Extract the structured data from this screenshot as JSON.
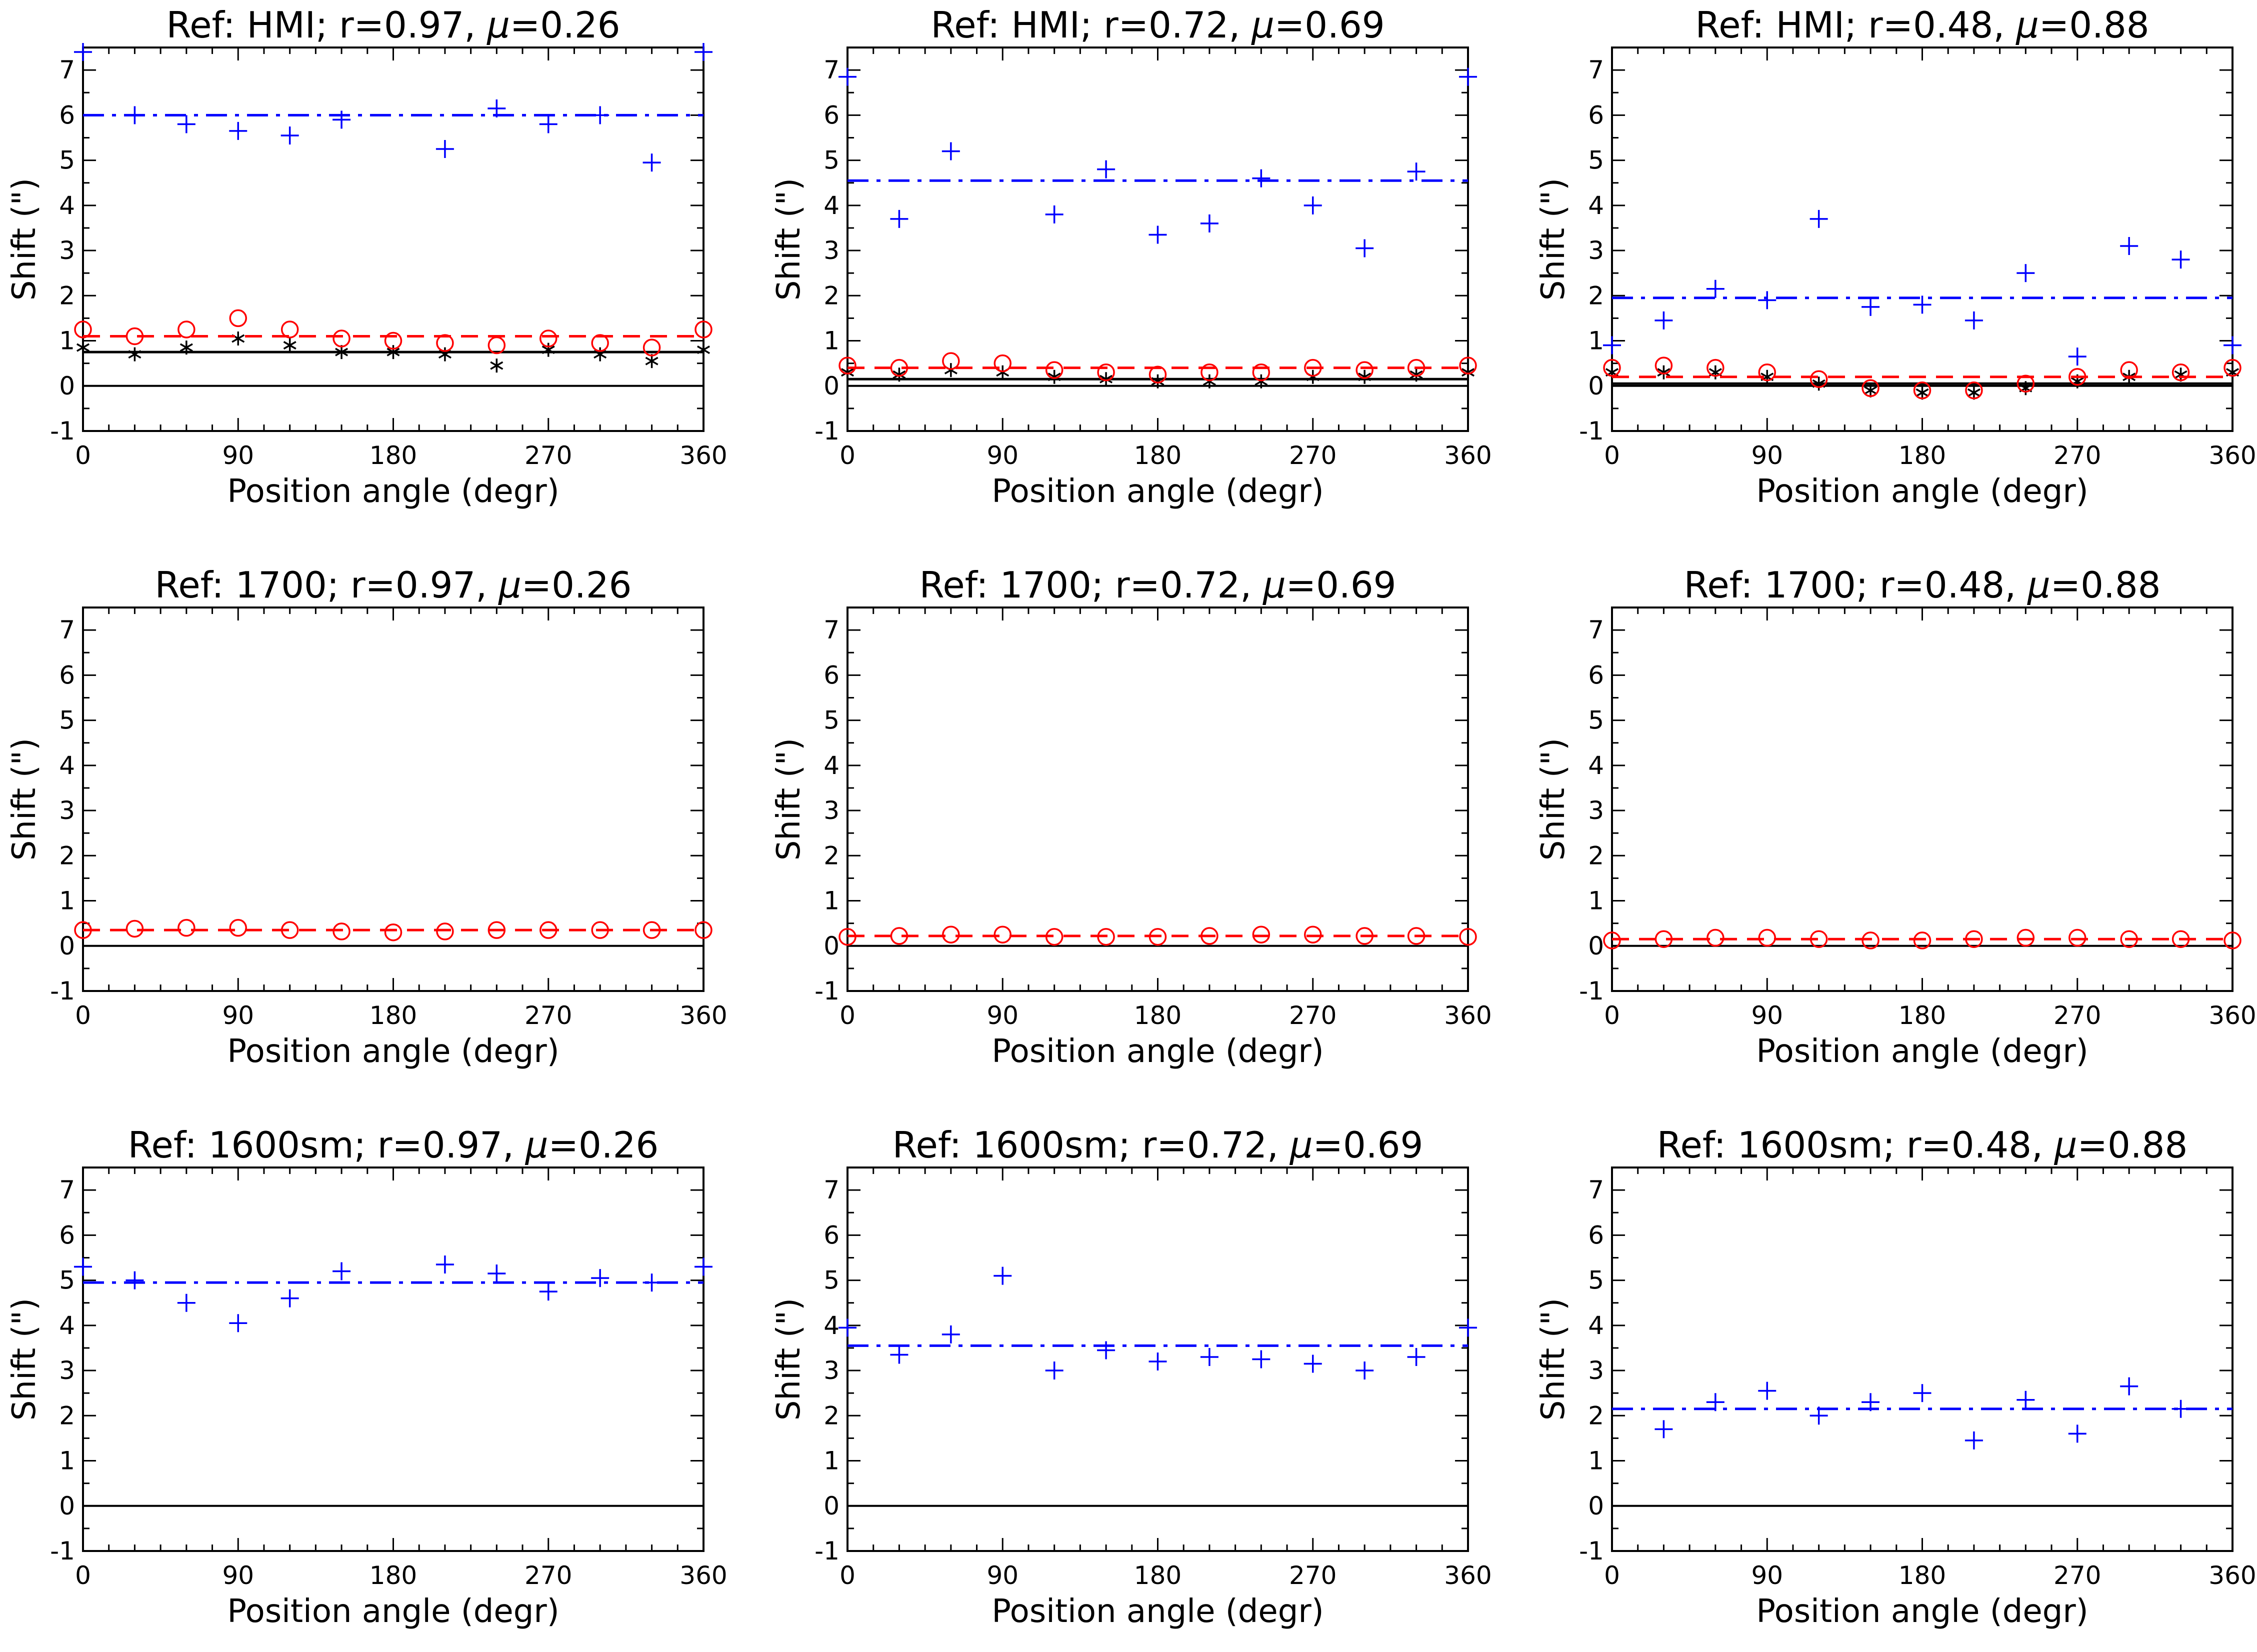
{
  "colors": {
    "axis": "#000000",
    "black_series": "#000000",
    "red_series": "#ff0000",
    "blue_series": "#0000ff"
  },
  "chart_data": [
    {
      "type": "scatter",
      "row": 0,
      "col": 0,
      "title_prefix": "Ref:  HMI;  r=0.97,  ",
      "title_mu": "μ",
      "title_suffix": "=0.26",
      "xlabel": "Position angle (degr)",
      "ylabel": "Shift (\")",
      "xlim": [
        0,
        360
      ],
      "ylim": [
        -1,
        7.5
      ],
      "xticks": [
        "0",
        "90",
        "180",
        "270",
        "360"
      ],
      "yticks": [
        "-1",
        "0",
        "1",
        "2",
        "3",
        "4",
        "5",
        "6",
        "7"
      ],
      "x": [
        0,
        30,
        60,
        90,
        120,
        150,
        180,
        210,
        240,
        270,
        300,
        330,
        360
      ],
      "series": [
        {
          "name": "black",
          "marker": "asterisk",
          "values": [
            0.85,
            0.7,
            0.85,
            1.05,
            0.9,
            0.75,
            0.75,
            0.7,
            0.45,
            0.8,
            0.7,
            0.55,
            0.8
          ],
          "mean": 0.75
        },
        {
          "name": "red",
          "marker": "circle",
          "values": [
            1.25,
            1.1,
            1.25,
            1.5,
            1.25,
            1.05,
            1.0,
            0.95,
            0.9,
            1.05,
            0.95,
            0.85,
            1.25
          ],
          "mean": 1.1
        },
        {
          "name": "blue",
          "marker": "plus",
          "values": [
            7.4,
            6.0,
            5.8,
            5.65,
            5.55,
            5.9,
            null,
            5.25,
            6.15,
            5.8,
            6.0,
            4.95,
            7.4
          ],
          "mean": 6.0
        }
      ]
    },
    {
      "type": "scatter",
      "row": 0,
      "col": 1,
      "title_prefix": "Ref:  HMI;  r=0.72,  ",
      "title_mu": "μ",
      "title_suffix": "=0.69",
      "xlabel": "Position angle (degr)",
      "ylabel": "Shift (\")",
      "xlim": [
        0,
        360
      ],
      "ylim": [
        -1,
        7.5
      ],
      "xticks": [
        "0",
        "90",
        "180",
        "270",
        "360"
      ],
      "yticks": [
        "-1",
        "0",
        "1",
        "2",
        "3",
        "4",
        "5",
        "6",
        "7"
      ],
      "x": [
        0,
        30,
        60,
        90,
        120,
        150,
        180,
        210,
        240,
        270,
        300,
        330,
        360
      ],
      "series": [
        {
          "name": "black",
          "marker": "asterisk",
          "values": [
            0.3,
            0.25,
            0.35,
            0.3,
            0.2,
            0.15,
            0.1,
            0.1,
            0.1,
            0.2,
            0.2,
            0.25,
            0.3
          ],
          "mean": 0.15
        },
        {
          "name": "red",
          "marker": "circle",
          "values": [
            0.45,
            0.4,
            0.55,
            0.5,
            0.35,
            0.3,
            0.25,
            0.3,
            0.3,
            0.4,
            0.35,
            0.4,
            0.45
          ],
          "mean": 0.4
        },
        {
          "name": "blue",
          "marker": "plus",
          "values": [
            6.85,
            3.7,
            5.2,
            null,
            3.8,
            4.8,
            3.35,
            3.6,
            4.6,
            4.0,
            3.05,
            4.75,
            6.85
          ],
          "mean": 4.55
        }
      ]
    },
    {
      "type": "scatter",
      "row": 0,
      "col": 2,
      "title_prefix": "Ref:  HMI;  r=0.48,  ",
      "title_mu": "μ",
      "title_suffix": "=0.88",
      "xlabel": "Position angle (degr)",
      "ylabel": "Shift (\")",
      "xlim": [
        0,
        360
      ],
      "ylim": [
        -1,
        7.5
      ],
      "xticks": [
        "0",
        "90",
        "180",
        "270",
        "360"
      ],
      "yticks": [
        "-1",
        "0",
        "1",
        "2",
        "3",
        "4",
        "5",
        "6",
        "7"
      ],
      "x": [
        0,
        30,
        60,
        90,
        120,
        150,
        180,
        210,
        240,
        270,
        300,
        330,
        360
      ],
      "series": [
        {
          "name": "black",
          "marker": "asterisk",
          "values": [
            0.3,
            0.3,
            0.3,
            0.2,
            0.05,
            -0.1,
            -0.15,
            -0.15,
            -0.05,
            0.1,
            0.2,
            0.25,
            0.3
          ],
          "mean": 0.05
        },
        {
          "name": "red",
          "marker": "circle",
          "values": [
            0.4,
            0.45,
            0.4,
            0.3,
            0.15,
            -0.05,
            -0.1,
            -0.1,
            0.05,
            0.2,
            0.35,
            0.3,
            0.4
          ],
          "mean": 0.2
        },
        {
          "name": "blue",
          "marker": "plus",
          "values": [
            0.9,
            1.45,
            2.15,
            1.9,
            3.7,
            1.75,
            1.8,
            1.45,
            2.5,
            0.65,
            3.1,
            2.8,
            0.9
          ],
          "mean": 1.95
        }
      ]
    },
    {
      "type": "scatter",
      "row": 1,
      "col": 0,
      "title_prefix": "Ref:  1700;  r=0.97,  ",
      "title_mu": "μ",
      "title_suffix": "=0.26",
      "xlabel": "Position angle (degr)",
      "ylabel": "Shift (\")",
      "xlim": [
        0,
        360
      ],
      "ylim": [
        -1,
        7.5
      ],
      "xticks": [
        "0",
        "90",
        "180",
        "270",
        "360"
      ],
      "yticks": [
        "-1",
        "0",
        "1",
        "2",
        "3",
        "4",
        "5",
        "6",
        "7"
      ],
      "x": [
        0,
        30,
        60,
        90,
        120,
        150,
        180,
        210,
        240,
        270,
        300,
        330,
        360
      ],
      "series": [
        {
          "name": "red",
          "marker": "circle",
          "values": [
            0.35,
            0.38,
            0.4,
            0.4,
            0.35,
            0.32,
            0.3,
            0.32,
            0.35,
            0.35,
            0.35,
            0.35,
            0.35
          ],
          "mean": 0.35
        }
      ]
    },
    {
      "type": "scatter",
      "row": 1,
      "col": 1,
      "title_prefix": "Ref:  1700;  r=0.72,  ",
      "title_mu": "μ",
      "title_suffix": "=0.69",
      "xlabel": "Position angle (degr)",
      "ylabel": "Shift (\")",
      "xlim": [
        0,
        360
      ],
      "ylim": [
        -1,
        7.5
      ],
      "xticks": [
        "0",
        "90",
        "180",
        "270",
        "360"
      ],
      "yticks": [
        "-1",
        "0",
        "1",
        "2",
        "3",
        "4",
        "5",
        "6",
        "7"
      ],
      "x": [
        0,
        30,
        60,
        90,
        120,
        150,
        180,
        210,
        240,
        270,
        300,
        330,
        360
      ],
      "series": [
        {
          "name": "red",
          "marker": "circle",
          "values": [
            0.2,
            0.22,
            0.25,
            0.25,
            0.2,
            0.2,
            0.2,
            0.22,
            0.25,
            0.25,
            0.22,
            0.22,
            0.2
          ],
          "mean": 0.22
        }
      ]
    },
    {
      "type": "scatter",
      "row": 1,
      "col": 2,
      "title_prefix": "Ref:  1700;  r=0.48,  ",
      "title_mu": "μ",
      "title_suffix": "=0.88",
      "xlabel": "Position angle (degr)",
      "ylabel": "Shift (\")",
      "xlim": [
        0,
        360
      ],
      "ylim": [
        -1,
        7.5
      ],
      "xticks": [
        "0",
        "90",
        "180",
        "270",
        "360"
      ],
      "yticks": [
        "-1",
        "0",
        "1",
        "2",
        "3",
        "4",
        "5",
        "6",
        "7"
      ],
      "x": [
        0,
        30,
        60,
        90,
        120,
        150,
        180,
        210,
        240,
        270,
        300,
        330,
        360
      ],
      "series": [
        {
          "name": "red",
          "marker": "circle",
          "values": [
            0.12,
            0.15,
            0.18,
            0.18,
            0.15,
            0.12,
            0.12,
            0.15,
            0.18,
            0.18,
            0.15,
            0.15,
            0.12
          ],
          "mean": 0.15
        }
      ]
    },
    {
      "type": "scatter",
      "row": 2,
      "col": 0,
      "title_prefix": "Ref:  1600sm;  r=0.97,  ",
      "title_mu": "μ",
      "title_suffix": "=0.26",
      "xlabel": "Position angle (degr)",
      "ylabel": "Shift (\")",
      "xlim": [
        0,
        360
      ],
      "ylim": [
        -1,
        7.5
      ],
      "xticks": [
        "0",
        "90",
        "180",
        "270",
        "360"
      ],
      "yticks": [
        "-1",
        "0",
        "1",
        "2",
        "3",
        "4",
        "5",
        "6",
        "7"
      ],
      "x": [
        0,
        30,
        60,
        90,
        120,
        150,
        180,
        210,
        240,
        270,
        300,
        330,
        360
      ],
      "series": [
        {
          "name": "blue",
          "marker": "plus",
          "values": [
            5.3,
            5.0,
            4.5,
            4.05,
            4.6,
            5.2,
            null,
            5.35,
            5.15,
            4.75,
            5.05,
            4.95,
            5.3
          ],
          "mean": 4.95
        }
      ]
    },
    {
      "type": "scatter",
      "row": 2,
      "col": 1,
      "title_prefix": "Ref:  1600sm;  r=0.72,  ",
      "title_mu": "μ",
      "title_suffix": "=0.69",
      "xlabel": "Position angle (degr)",
      "ylabel": "Shift (\")",
      "xlim": [
        0,
        360
      ],
      "ylim": [
        -1,
        7.5
      ],
      "xticks": [
        "0",
        "90",
        "180",
        "270",
        "360"
      ],
      "yticks": [
        "-1",
        "0",
        "1",
        "2",
        "3",
        "4",
        "5",
        "6",
        "7"
      ],
      "x": [
        0,
        30,
        60,
        90,
        120,
        150,
        180,
        210,
        240,
        270,
        300,
        330,
        360
      ],
      "series": [
        {
          "name": "blue",
          "marker": "plus",
          "values": [
            3.95,
            3.35,
            3.8,
            5.1,
            3.0,
            3.45,
            3.2,
            3.3,
            3.25,
            3.15,
            3.0,
            3.3,
            3.95
          ],
          "mean": 3.55
        }
      ]
    },
    {
      "type": "scatter",
      "row": 2,
      "col": 2,
      "title_prefix": "Ref:  1600sm;  r=0.48,  ",
      "title_mu": "μ",
      "title_suffix": "=0.88",
      "xlabel": "Position angle (degr)",
      "ylabel": "Shift (\")",
      "xlim": [
        0,
        360
      ],
      "ylim": [
        -1,
        7.5
      ],
      "xticks": [
        "0",
        "90",
        "180",
        "270",
        "360"
      ],
      "yticks": [
        "-1",
        "0",
        "1",
        "2",
        "3",
        "4",
        "5",
        "6",
        "7"
      ],
      "x": [
        0,
        30,
        60,
        90,
        120,
        150,
        180,
        210,
        240,
        270,
        300,
        330,
        360
      ],
      "series": [
        {
          "name": "blue",
          "marker": "plus",
          "values": [
            null,
            1.7,
            2.3,
            2.55,
            2.0,
            2.3,
            2.5,
            1.45,
            2.35,
            1.6,
            2.65,
            2.15,
            null
          ],
          "mean": 2.15
        }
      ]
    }
  ]
}
